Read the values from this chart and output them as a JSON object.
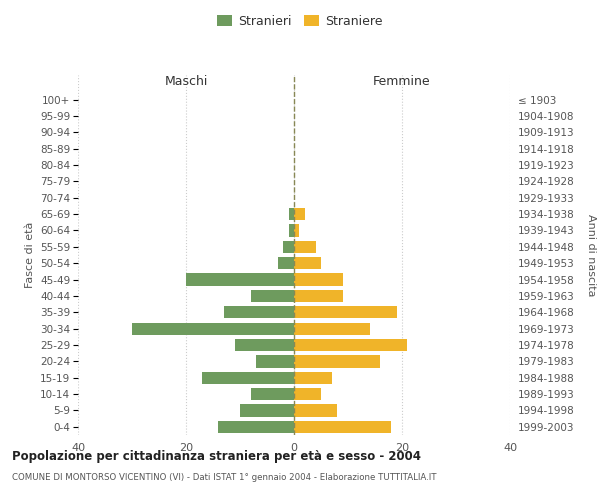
{
  "age_groups": [
    "0-4",
    "5-9",
    "10-14",
    "15-19",
    "20-24",
    "25-29",
    "30-34",
    "35-39",
    "40-44",
    "45-49",
    "50-54",
    "55-59",
    "60-64",
    "65-69",
    "70-74",
    "75-79",
    "80-84",
    "85-89",
    "90-94",
    "95-99",
    "100+"
  ],
  "birth_years": [
    "1999-2003",
    "1994-1998",
    "1989-1993",
    "1984-1988",
    "1979-1983",
    "1974-1978",
    "1969-1973",
    "1964-1968",
    "1959-1963",
    "1954-1958",
    "1949-1953",
    "1944-1948",
    "1939-1943",
    "1934-1938",
    "1929-1933",
    "1924-1928",
    "1919-1923",
    "1914-1918",
    "1909-1913",
    "1904-1908",
    "≤ 1903"
  ],
  "maschi": [
    14,
    10,
    8,
    17,
    7,
    11,
    30,
    13,
    8,
    20,
    3,
    2,
    1,
    1,
    0,
    0,
    0,
    0,
    0,
    0,
    0
  ],
  "femmine": [
    18,
    8,
    5,
    7,
    16,
    21,
    14,
    19,
    9,
    9,
    5,
    4,
    1,
    2,
    0,
    0,
    0,
    0,
    0,
    0,
    0
  ],
  "male_color": "#6e9b5e",
  "female_color": "#f0b429",
  "center_line_color": "#888855",
  "title": "Popolazione per cittadinanza straniera per età e sesso - 2004",
  "subtitle": "COMUNE DI MONTORSO VICENTINO (VI) - Dati ISTAT 1° gennaio 2004 - Elaborazione TUTTITALIA.IT",
  "maschi_label": "Maschi",
  "femmine_label": "Femmine",
  "legend_stranieri": "Stranieri",
  "legend_straniere": "Straniere",
  "ylabel_left": "Fasce di età",
  "ylabel_right": "Anni di nascita",
  "xlim": 40,
  "background_color": "#ffffff",
  "grid_color": "#cccccc"
}
